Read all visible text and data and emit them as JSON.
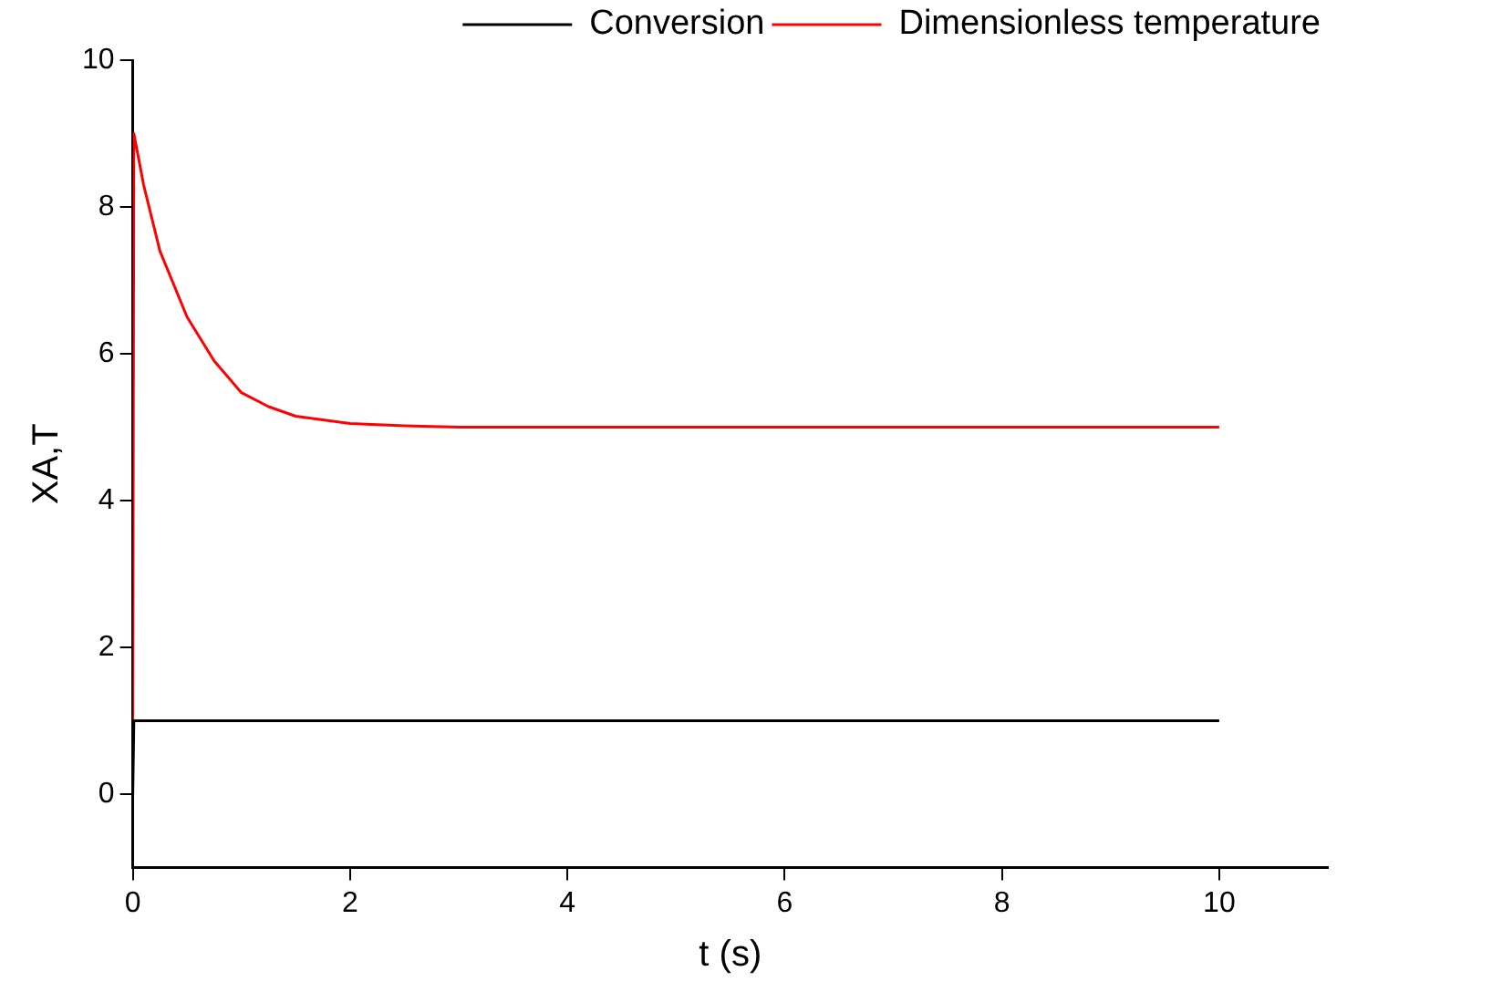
{
  "chart_data": {
    "type": "line",
    "xlabel": "t (s)",
    "ylabel": "XA,T",
    "xlim": [
      0,
      11
    ],
    "xticks": [
      0,
      2,
      4,
      6,
      8,
      10
    ],
    "ylim": [
      -1,
      10
    ],
    "yticks": [
      0,
      2,
      4,
      6,
      8,
      10
    ],
    "grid": false,
    "legend": "top right",
    "marker": "none",
    "line_style": "solid",
    "series": [
      {
        "name": "Conversion",
        "color": "#000000",
        "x": [
          0,
          0.01,
          1,
          2,
          4,
          6,
          8,
          10
        ],
        "values": [
          0,
          1,
          1,
          1,
          1,
          1,
          1,
          1
        ]
      },
      {
        "name": "Dimensionless temperature",
        "color": "#ff0000",
        "x": [
          0,
          0.01,
          0.1,
          0.25,
          0.5,
          0.75,
          1,
          1.25,
          1.5,
          2,
          2.5,
          3,
          4,
          6,
          8,
          10
        ],
        "values": [
          1,
          9,
          8.3,
          7.4,
          6.5,
          5.9,
          5.47,
          5.28,
          5.15,
          5.05,
          5.02,
          5.0,
          5.0,
          5.0,
          5.0,
          5.0
        ]
      }
    ]
  }
}
